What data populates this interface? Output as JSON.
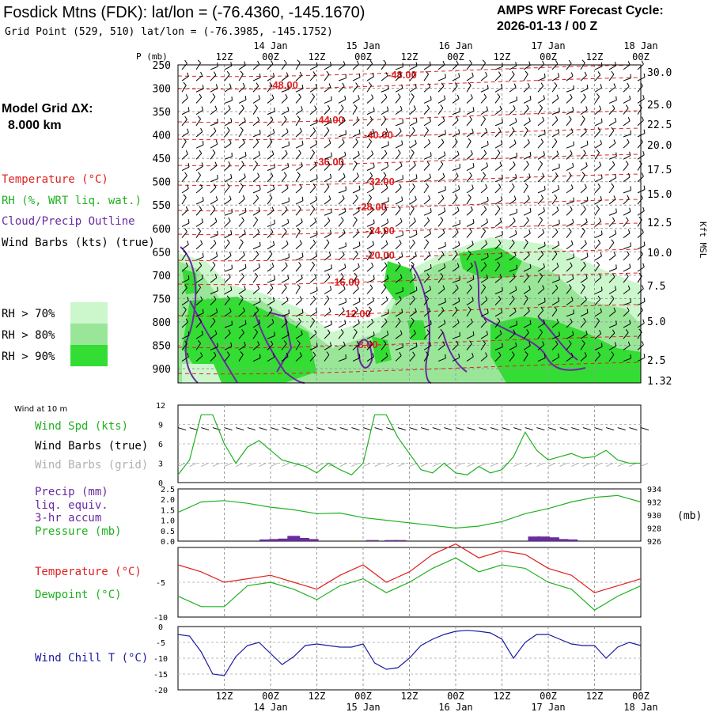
{
  "header": {
    "title": "Fosdick Mtns (FDK):  lat/lon = (-76.4360, -145.1670)",
    "grid_point": "Grid Point (529, 510) lat/lon = (-76.3985, -145.1752)",
    "cycle_label": "AMPS WRF Forecast Cycle:",
    "cycle_value": "2026-01-13 / 00  Z"
  },
  "side_panel": {
    "model_grid_label": "Model Grid ΔX:",
    "model_grid_value": "8.000 km",
    "legend_items": [
      {
        "label": "Temperature (°C)",
        "color": "#e02020"
      },
      {
        "label": "RH (%, WRT liq. wat.)",
        "color": "#20b020"
      },
      {
        "label": "Cloud/Precip Outline",
        "color": "#6a2aa0"
      },
      {
        "label": "Wind Barbs (kts) (true)",
        "color": "#000000"
      }
    ],
    "rh_legend": [
      {
        "label": "RH > 70%",
        "color": "#ccf7cc"
      },
      {
        "label": "RH > 80%",
        "color": "#99e699"
      },
      {
        "label": "RH > 90%",
        "color": "#33dd33"
      }
    ]
  },
  "time_axis": {
    "hour_labels": [
      "12Z",
      "00Z",
      "12Z",
      "00Z",
      "12Z",
      "00Z",
      "12Z",
      "00Z",
      "12Z",
      "00Z"
    ],
    "date_labels": [
      "14 Jan",
      "15 Jan",
      "16 Jan",
      "17 Jan",
      "18 Jan"
    ]
  },
  "chart_data": [
    {
      "type": "heatmap",
      "name": "cross-section",
      "ylabel": "P (mb)",
      "y2label": "Kft MSL",
      "pressure_ticks": [
        250,
        300,
        350,
        400,
        450,
        500,
        550,
        600,
        650,
        700,
        750,
        800,
        850,
        900
      ],
      "height_ticks": [
        "30.0",
        "25.0",
        "22.5",
        "20.0",
        "17.5",
        "15.0",
        "12.5",
        "10.0",
        "7.5",
        "5.0",
        "2.5",
        "1.32"
      ],
      "temperature_labels": [
        "-48.00",
        "-48.00",
        "-44.00",
        "-40.00",
        "-36.00",
        "-32.00",
        "-28.00",
        "-24.00",
        "-20.00",
        "-16.00",
        "-12.00",
        "-8.00"
      ],
      "grid": true
    },
    {
      "type": "line",
      "name": "wind",
      "title": "Wind at 10 m",
      "legend": [
        {
          "label": "Wind Spd (kts)",
          "color": "#20b020"
        },
        {
          "label": "Wind Barbs (true)",
          "color": "#000000"
        },
        {
          "label": "Wind Barbs (grid)",
          "color": "#b0b0b0"
        }
      ],
      "ylim": [
        0,
        12
      ],
      "yticks": [
        "12",
        "9",
        "6",
        "3",
        "0"
      ],
      "x": [
        0,
        0.25,
        0.5,
        0.75,
        1,
        1.25,
        1.5,
        1.75,
        2,
        2.25,
        2.5,
        2.75,
        3,
        3.25,
        3.5,
        3.75,
        4,
        4.25,
        4.5,
        4.75,
        5,
        5.25,
        5.5,
        5.75,
        6,
        6.25,
        6.5,
        6.75,
        7,
        7.25,
        7.5,
        7.75,
        8,
        8.25,
        8.5,
        8.75,
        9,
        9.25,
        9.5,
        9.75,
        10
      ],
      "series": [
        {
          "name": "Wind Spd (kts)",
          "values": [
            1.2,
            3.5,
            10.5,
            10.5,
            6.0,
            3.0,
            5.5,
            6.5,
            5.0,
            3.5,
            3.0,
            2.5,
            1.5,
            3.0,
            2.0,
            1.2,
            3.0,
            10.5,
            10.5,
            7.0,
            4.5,
            2.0,
            1.5,
            3.0,
            1.5,
            1.2,
            2.5,
            1.5,
            2.0,
            4.0,
            7.8,
            5.0,
            3.5,
            4.0,
            4.5,
            3.8,
            4.0,
            5.0,
            3.5,
            3.0,
            3.0
          ]
        }
      ]
    },
    {
      "type": "line",
      "name": "precip-pressure",
      "legend": [
        {
          "label": "Precip (mm)",
          "color": "#6a2aa0"
        },
        {
          "label": "liq. equiv.",
          "color": "#6a2aa0"
        },
        {
          "label": "3-hr accum",
          "color": "#6a2aa0"
        },
        {
          "label": "Pressure (mb)",
          "color": "#20b020"
        }
      ],
      "yticks_left": [
        "2.5",
        "2.0",
        "1.5",
        "1.0",
        "0.5",
        "0.0"
      ],
      "yticks_right": [
        "934",
        "932",
        "930",
        "928",
        "926"
      ],
      "y2label": "(mb)",
      "ylim": [
        0,
        2.5
      ],
      "y2lim": [
        926,
        934
      ],
      "x": [
        0,
        0.5,
        1,
        1.5,
        2,
        2.5,
        3,
        3.5,
        4,
        4.5,
        5,
        5.5,
        6,
        6.5,
        7,
        7.5,
        8,
        8.5,
        9,
        9.5,
        10
      ],
      "series": [
        {
          "name": "Pressure (mb)",
          "values": [
            930.4,
            932.0,
            932.2,
            931.8,
            931.2,
            930.8,
            930.2,
            930.3,
            929.6,
            929.2,
            928.8,
            928.4,
            928.0,
            928.3,
            929.0,
            930.2,
            931.0,
            932.0,
            932.7,
            933.0,
            932.0
          ]
        }
      ],
      "precip": [
        {
          "x": 1.9,
          "value": 0.08
        },
        {
          "x": 2.1,
          "value": 0.1
        },
        {
          "x": 2.3,
          "value": 0.12
        },
        {
          "x": 2.5,
          "value": 0.25
        },
        {
          "x": 2.7,
          "value": 0.15
        },
        {
          "x": 2.9,
          "value": 0.1
        },
        {
          "x": 4.2,
          "value": 0.05
        },
        {
          "x": 4.6,
          "value": 0.05
        },
        {
          "x": 4.8,
          "value": 0.05
        },
        {
          "x": 7.7,
          "value": 0.22
        },
        {
          "x": 7.9,
          "value": 0.22
        },
        {
          "x": 8.1,
          "value": 0.18
        },
        {
          "x": 8.3,
          "value": 0.1
        },
        {
          "x": 8.5,
          "value": 0.08
        }
      ]
    },
    {
      "type": "line",
      "name": "temperature",
      "legend": [
        {
          "label": "Temperature (°C)",
          "color": "#e02020"
        },
        {
          "label": "Dewpoint (°C)",
          "color": "#20b020"
        }
      ],
      "yticks": [
        "-5",
        "-10"
      ],
      "ylim": [
        -10,
        0
      ],
      "x": [
        0,
        0.5,
        1,
        1.5,
        2,
        2.5,
        3,
        3.5,
        4,
        4.5,
        5,
        5.5,
        6,
        6.5,
        7,
        7.5,
        8,
        8.5,
        9,
        9.5,
        10
      ],
      "series": [
        {
          "name": "Temperature (°C)",
          "values": [
            -2.5,
            -3.5,
            -5.0,
            -4.5,
            -4.0,
            -5.0,
            -6.0,
            -4.0,
            -2.5,
            -5.0,
            -3.5,
            -1.0,
            0.5,
            -1.5,
            -0.5,
            -1.0,
            -3.0,
            -4.0,
            -6.5,
            -5.5,
            -4.5
          ]
        },
        {
          "name": "Dewpoint (°C)",
          "values": [
            -7.0,
            -8.5,
            -8.5,
            -5.5,
            -5.0,
            -6.0,
            -7.5,
            -5.5,
            -4.5,
            -6.5,
            -5.0,
            -3.0,
            -1.5,
            -3.5,
            -2.5,
            -3.0,
            -5.0,
            -6.0,
            -9.0,
            -7.0,
            -5.5
          ]
        }
      ]
    },
    {
      "type": "line",
      "name": "wind-chill",
      "legend": [
        {
          "label": "Wind Chill T (°C)",
          "color": "#1a1aa0"
        }
      ],
      "yticks": [
        "0",
        "-5",
        "-10",
        "-15",
        "-20"
      ],
      "ylim": [
        -20,
        0
      ],
      "x": [
        0,
        0.25,
        0.5,
        0.75,
        1,
        1.25,
        1.5,
        1.75,
        2,
        2.25,
        2.5,
        2.75,
        3,
        3.25,
        3.5,
        3.75,
        4,
        4.25,
        4.5,
        4.75,
        5,
        5.25,
        5.5,
        5.75,
        6,
        6.25,
        6.5,
        6.75,
        7,
        7.25,
        7.5,
        7.75,
        8,
        8.25,
        8.5,
        8.75,
        9,
        9.25,
        9.5,
        9.75,
        10
      ],
      "series": [
        {
          "name": "Wind Chill T (°C)",
          "values": [
            -2.5,
            -3.0,
            -8.0,
            -15.0,
            -15.5,
            -9.5,
            -6.0,
            -5.0,
            -8.5,
            -12.0,
            -9.5,
            -6.0,
            -5.5,
            -6.0,
            -6.5,
            -6.5,
            -5.5,
            -11.5,
            -13.5,
            -13.0,
            -10.0,
            -6.0,
            -4.0,
            -2.5,
            -1.5,
            -1.2,
            -1.5,
            -2.0,
            -4.0,
            -10.0,
            -5.0,
            -2.5,
            -2.5,
            -4.0,
            -5.5,
            -6.0,
            -6.0,
            -10.0,
            -6.5,
            -5.0,
            -6.0
          ]
        }
      ]
    }
  ]
}
